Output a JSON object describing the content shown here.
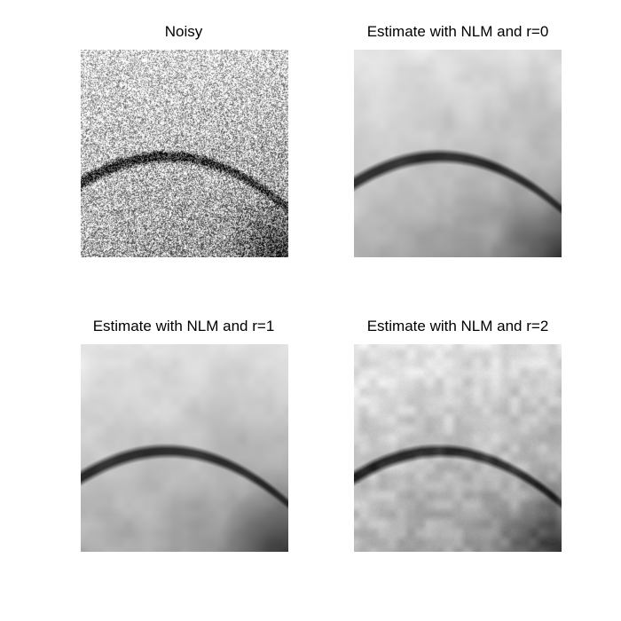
{
  "figure": {
    "panels": [
      {
        "title": "Noisy",
        "style": "noisy"
      },
      {
        "title": "Estimate with NLM and r=0",
        "style": "smooth"
      },
      {
        "title": "Estimate with NLM and r=1",
        "style": "smooth"
      },
      {
        "title": "Estimate with NLM and r=2",
        "style": "textured"
      }
    ]
  }
}
